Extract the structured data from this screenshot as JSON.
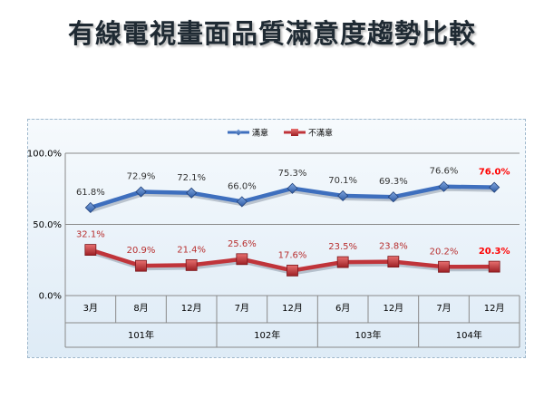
{
  "title": "有線電視畫面品質滿意度趨勢比較",
  "colors": {
    "satisfied": "#3e6fbe",
    "unsatisfied": "#c0343a",
    "label_unsatisfied": "#b83030",
    "highlight_last": "#ff0000",
    "grid": "#8a8a8a"
  },
  "chart_data": {
    "type": "line",
    "x": [
      "3月",
      "8月",
      "12月",
      "7月",
      "12月",
      "6月",
      "12月",
      "7月",
      "12月"
    ],
    "groups": [
      {
        "label": "101年",
        "count": 3
      },
      {
        "label": "102年",
        "count": 2
      },
      {
        "label": "103年",
        "count": 2
      },
      {
        "label": "104年",
        "count": 2
      }
    ],
    "series": [
      {
        "name": "滿意",
        "values": [
          61.8,
          72.9,
          72.1,
          66.0,
          75.3,
          70.1,
          69.3,
          76.6,
          76.0
        ],
        "labels": [
          "61.8%",
          "72.9%",
          "72.1%",
          "66.0%",
          "75.3%",
          "70.1%",
          "69.3%",
          "76.6%",
          "76.0%"
        ]
      },
      {
        "name": "不滿意",
        "values": [
          32.1,
          20.9,
          21.4,
          25.6,
          17.6,
          23.5,
          23.8,
          20.2,
          20.3
        ],
        "labels": [
          "32.1%",
          "20.9%",
          "21.4%",
          "25.6%",
          "17.6%",
          "23.5%",
          "23.8%",
          "20.2%",
          "20.3%"
        ]
      }
    ],
    "yticks": [
      "0.0%",
      "50.0%",
      "100.0%"
    ],
    "ylim": [
      0,
      100
    ],
    "legend": "top-center",
    "grid": true
  }
}
